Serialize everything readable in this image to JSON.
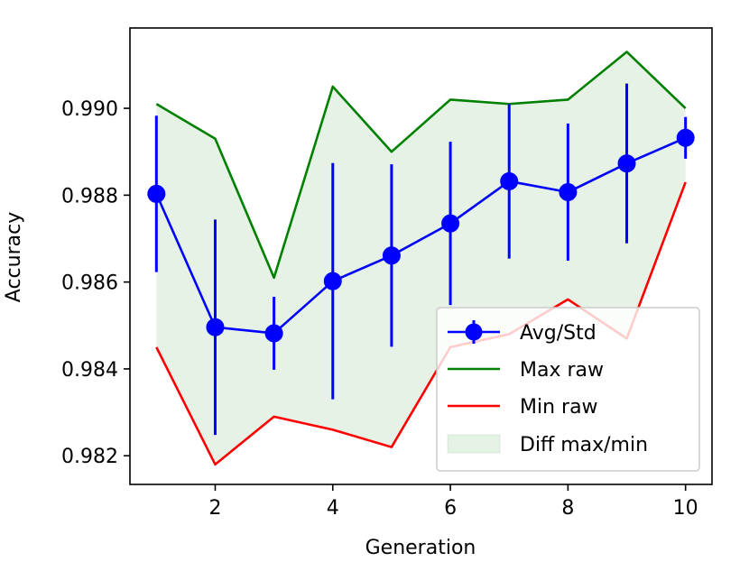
{
  "chart_data": {
    "type": "line",
    "title": "",
    "xlabel": "Generation",
    "ylabel": "Accuracy",
    "xlim": [
      0.55,
      10.45
    ],
    "ylim": [
      0.98134,
      0.99185
    ],
    "xticks": [
      2,
      4,
      6,
      8,
      10
    ],
    "yticks": [
      0.982,
      0.984,
      0.986,
      0.988,
      0.99
    ],
    "xtick_labels": [
      "2",
      "4",
      "6",
      "8",
      "10"
    ],
    "ytick_labels": [
      "0.982",
      "0.984",
      "0.986",
      "0.988",
      "0.990"
    ],
    "x": [
      1,
      2,
      3,
      4,
      5,
      6,
      7,
      8,
      9,
      10
    ],
    "series": [
      {
        "name": "Avg/Std",
        "color": "#0000ff",
        "style": "line-marker-errorbar",
        "values": [
          0.98803,
          0.98496,
          0.98482,
          0.98602,
          0.98661,
          0.98735,
          0.98832,
          0.98807,
          0.98873,
          0.98932
        ],
        "errors": [
          0.0018,
          0.00248,
          0.00084,
          0.00272,
          0.0021,
          0.00188,
          0.00178,
          0.00158,
          0.00184,
          0.00048
        ]
      },
      {
        "name": "Max raw",
        "color": "#008000",
        "style": "line",
        "values": [
          0.9901,
          0.9893,
          0.9861,
          0.9905,
          0.989,
          0.9902,
          0.9901,
          0.9902,
          0.9913,
          0.99
        ]
      },
      {
        "name": "Min raw",
        "color": "#ff0000",
        "style": "line",
        "values": [
          0.9845,
          0.9818,
          0.9829,
          0.9826,
          0.9822,
          0.9845,
          0.9848,
          0.9856,
          0.9847,
          0.9883
        ]
      }
    ],
    "fill_between": {
      "name": "Diff max/min",
      "color": "#008000",
      "opacity": 0.1,
      "upper": "Max raw",
      "lower": "Min raw"
    },
    "legend": {
      "position": "lower-right",
      "entries": [
        "Avg/Std",
        "Max raw",
        "Min raw",
        "Diff max/min"
      ]
    },
    "grid": false
  }
}
